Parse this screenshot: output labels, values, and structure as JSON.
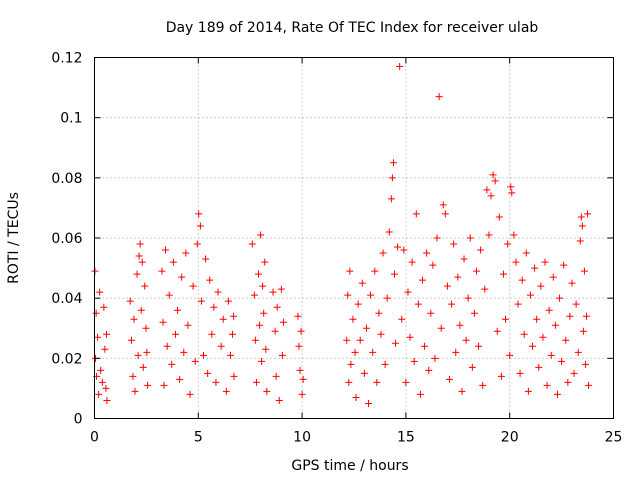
{
  "chart_data": {
    "type": "scatter",
    "title": "Day 189 of 2014, Rate Of TEC Index for receiver ulab",
    "xlabel": "GPS time / hours",
    "ylabel": "ROTI / TECUs",
    "xlim": [
      0,
      25
    ],
    "ylim": [
      0,
      0.12
    ],
    "xticks": [
      "0",
      "5",
      "10",
      "15",
      "20",
      "25"
    ],
    "yticks": [
      "0",
      "0.02",
      "0.04",
      "0.06",
      "0.08",
      "0.1",
      "0.12"
    ],
    "grid": true,
    "marker": "+",
    "color": "#ff0000",
    "series": [
      {
        "points": [
          [
            0.02,
            0.049
          ],
          [
            0.05,
            0.02
          ],
          [
            0.08,
            0.035
          ],
          [
            0.1,
            0.014
          ],
          [
            0.15,
            0.027
          ],
          [
            0.2,
            0.008
          ],
          [
            0.25,
            0.042
          ],
          [
            0.3,
            0.016
          ],
          [
            0.38,
            0.012
          ],
          [
            0.45,
            0.037
          ],
          [
            0.5,
            0.023
          ],
          [
            0.55,
            0.01
          ],
          [
            0.58,
            0.028
          ],
          [
            0.6,
            0.006
          ],
          [
            1.72,
            0.039
          ],
          [
            1.78,
            0.026
          ],
          [
            1.85,
            0.014
          ],
          [
            1.9,
            0.033
          ],
          [
            1.95,
            0.009
          ],
          [
            2.05,
            0.048
          ],
          [
            2.1,
            0.021
          ],
          [
            2.15,
            0.054
          ],
          [
            2.2,
            0.058
          ],
          [
            2.25,
            0.036
          ],
          [
            2.3,
            0.052
          ],
          [
            2.35,
            0.017
          ],
          [
            2.42,
            0.044
          ],
          [
            2.48,
            0.03
          ],
          [
            2.52,
            0.022
          ],
          [
            2.56,
            0.011
          ],
          [
            3.25,
            0.049
          ],
          [
            3.3,
            0.032
          ],
          [
            3.35,
            0.011
          ],
          [
            3.42,
            0.056
          ],
          [
            3.5,
            0.024
          ],
          [
            3.6,
            0.041
          ],
          [
            3.72,
            0.018
          ],
          [
            3.8,
            0.052
          ],
          [
            3.9,
            0.028
          ],
          [
            4.0,
            0.036
          ],
          [
            4.1,
            0.013
          ],
          [
            4.2,
            0.047
          ],
          [
            4.3,
            0.022
          ],
          [
            4.4,
            0.055
          ],
          [
            4.5,
            0.031
          ],
          [
            4.6,
            0.008
          ],
          [
            4.75,
            0.044
          ],
          [
            4.85,
            0.019
          ],
          [
            4.95,
            0.058
          ],
          [
            5.02,
            0.068
          ],
          [
            5.1,
            0.064
          ],
          [
            5.15,
            0.039
          ],
          [
            5.25,
            0.021
          ],
          [
            5.35,
            0.053
          ],
          [
            5.45,
            0.015
          ],
          [
            5.55,
            0.046
          ],
          [
            5.65,
            0.028
          ],
          [
            5.75,
            0.037
          ],
          [
            5.85,
            0.012
          ],
          [
            5.95,
            0.042
          ],
          [
            6.1,
            0.024
          ],
          [
            6.2,
            0.033
          ],
          [
            6.35,
            0.009
          ],
          [
            6.45,
            0.039
          ],
          [
            6.55,
            0.021
          ],
          [
            6.65,
            0.028
          ],
          [
            6.7,
            0.034
          ],
          [
            6.72,
            0.014
          ],
          [
            7.6,
            0.058
          ],
          [
            7.7,
            0.041
          ],
          [
            7.75,
            0.026
          ],
          [
            7.8,
            0.012
          ],
          [
            7.9,
            0.048
          ],
          [
            7.95,
            0.031
          ],
          [
            8.0,
            0.061
          ],
          [
            8.05,
            0.019
          ],
          [
            8.1,
            0.044
          ],
          [
            8.15,
            0.035
          ],
          [
            8.2,
            0.052
          ],
          [
            8.25,
            0.023
          ],
          [
            8.3,
            0.009
          ],
          [
            8.6,
            0.042
          ],
          [
            8.7,
            0.029
          ],
          [
            8.75,
            0.014
          ],
          [
            8.8,
            0.037
          ],
          [
            8.9,
            0.006
          ],
          [
            9.0,
            0.043
          ],
          [
            9.05,
            0.021
          ],
          [
            9.1,
            0.032
          ],
          [
            9.8,
            0.034
          ],
          [
            9.85,
            0.024
          ],
          [
            9.9,
            0.016
          ],
          [
            9.95,
            0.029
          ],
          [
            10.0,
            0.008
          ],
          [
            10.05,
            0.013
          ],
          [
            12.15,
            0.026
          ],
          [
            12.2,
            0.041
          ],
          [
            12.25,
            0.012
          ],
          [
            12.3,
            0.049
          ],
          [
            12.35,
            0.018
          ],
          [
            12.45,
            0.033
          ],
          [
            12.55,
            0.022
          ],
          [
            12.6,
            0.007
          ],
          [
            12.7,
            0.038
          ],
          [
            12.8,
            0.026
          ],
          [
            12.9,
            0.045
          ],
          [
            13.0,
            0.015
          ],
          [
            13.1,
            0.03
          ],
          [
            13.2,
            0.005
          ],
          [
            13.3,
            0.041
          ],
          [
            13.4,
            0.022
          ],
          [
            13.5,
            0.049
          ],
          [
            13.6,
            0.012
          ],
          [
            13.7,
            0.035
          ],
          [
            13.8,
            0.028
          ],
          [
            13.9,
            0.055
          ],
          [
            14.0,
            0.018
          ],
          [
            14.1,
            0.04
          ],
          [
            14.2,
            0.062
          ],
          [
            14.3,
            0.073
          ],
          [
            14.35,
            0.08
          ],
          [
            14.4,
            0.085
          ],
          [
            14.45,
            0.048
          ],
          [
            14.5,
            0.025
          ],
          [
            14.6,
            0.057
          ],
          [
            14.7,
            0.117
          ],
          [
            14.8,
            0.033
          ],
          [
            14.9,
            0.056
          ],
          [
            15.0,
            0.012
          ],
          [
            15.1,
            0.042
          ],
          [
            15.2,
            0.027
          ],
          [
            15.3,
            0.052
          ],
          [
            15.4,
            0.019
          ],
          [
            15.5,
            0.068
          ],
          [
            15.6,
            0.038
          ],
          [
            15.7,
            0.008
          ],
          [
            15.8,
            0.046
          ],
          [
            15.9,
            0.024
          ],
          [
            16.0,
            0.055
          ],
          [
            16.1,
            0.016
          ],
          [
            16.2,
            0.035
          ],
          [
            16.3,
            0.051
          ],
          [
            16.4,
            0.02
          ],
          [
            16.5,
            0.06
          ],
          [
            16.6,
            0.107
          ],
          [
            16.7,
            0.03
          ],
          [
            16.8,
            0.071
          ],
          [
            16.9,
            0.068
          ],
          [
            17.0,
            0.044
          ],
          [
            17.1,
            0.013
          ],
          [
            17.2,
            0.038
          ],
          [
            17.3,
            0.058
          ],
          [
            17.4,
            0.022
          ],
          [
            17.5,
            0.047
          ],
          [
            17.6,
            0.031
          ],
          [
            17.7,
            0.009
          ],
          [
            17.8,
            0.053
          ],
          [
            17.9,
            0.026
          ],
          [
            18.0,
            0.04
          ],
          [
            18.1,
            0.06
          ],
          [
            18.2,
            0.017
          ],
          [
            18.3,
            0.035
          ],
          [
            18.4,
            0.049
          ],
          [
            18.5,
            0.024
          ],
          [
            18.6,
            0.056
          ],
          [
            18.7,
            0.011
          ],
          [
            18.8,
            0.043
          ],
          [
            18.9,
            0.076
          ],
          [
            19.0,
            0.061
          ],
          [
            19.1,
            0.074
          ],
          [
            19.2,
            0.081
          ],
          [
            19.3,
            0.079
          ],
          [
            19.4,
            0.029
          ],
          [
            19.5,
            0.067
          ],
          [
            19.6,
            0.014
          ],
          [
            19.7,
            0.048
          ],
          [
            19.8,
            0.033
          ],
          [
            19.9,
            0.058
          ],
          [
            20.0,
            0.021
          ],
          [
            20.05,
            0.077
          ],
          [
            20.1,
            0.075
          ],
          [
            20.2,
            0.061
          ],
          [
            20.3,
            0.052
          ],
          [
            20.4,
            0.038
          ],
          [
            20.5,
            0.015
          ],
          [
            20.6,
            0.046
          ],
          [
            20.7,
            0.028
          ],
          [
            20.8,
            0.055
          ],
          [
            20.9,
            0.009
          ],
          [
            21.0,
            0.041
          ],
          [
            21.1,
            0.024
          ],
          [
            21.2,
            0.05
          ],
          [
            21.3,
            0.033
          ],
          [
            21.4,
            0.017
          ],
          [
            21.5,
            0.044
          ],
          [
            21.6,
            0.027
          ],
          [
            21.7,
            0.052
          ],
          [
            21.8,
            0.011
          ],
          [
            21.9,
            0.036
          ],
          [
            22.0,
            0.021
          ],
          [
            22.1,
            0.047
          ],
          [
            22.2,
            0.031
          ],
          [
            22.3,
            0.008
          ],
          [
            22.4,
            0.04
          ],
          [
            22.5,
            0.019
          ],
          [
            22.6,
            0.051
          ],
          [
            22.7,
            0.026
          ],
          [
            22.8,
            0.012
          ],
          [
            22.9,
            0.034
          ],
          [
            23.0,
            0.045
          ],
          [
            23.1,
            0.015
          ],
          [
            23.2,
            0.038
          ],
          [
            23.3,
            0.022
          ],
          [
            23.4,
            0.059
          ],
          [
            23.45,
            0.067
          ],
          [
            23.5,
            0.064
          ],
          [
            23.55,
            0.029
          ],
          [
            23.6,
            0.049
          ],
          [
            23.65,
            0.018
          ],
          [
            23.7,
            0.034
          ],
          [
            23.75,
            0.068
          ],
          [
            23.8,
            0.011
          ]
        ]
      }
    ]
  }
}
